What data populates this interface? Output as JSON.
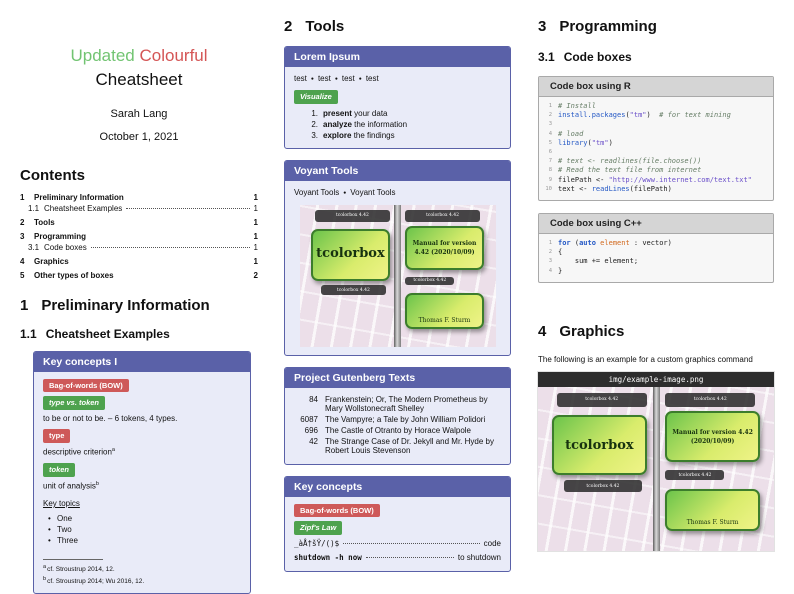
{
  "titleblock": {
    "word_updated": "Updated",
    "word_colourful": "Colourful",
    "word_cheatsheet": "Cheatsheet",
    "author": "Sarah Lang",
    "date": "October 1, 2021"
  },
  "contents": {
    "heading": "Contents",
    "items": [
      {
        "num": "1",
        "label": "Preliminary Information",
        "page": "1"
      },
      {
        "num": "1.1",
        "label": "Cheatsheet Examples",
        "page": "1"
      },
      {
        "num": "2",
        "label": "Tools",
        "page": "1"
      },
      {
        "num": "3",
        "label": "Programming",
        "page": "1"
      },
      {
        "num": "3.1",
        "label": "Code boxes",
        "page": "1"
      },
      {
        "num": "4",
        "label": "Graphics",
        "page": "1"
      },
      {
        "num": "5",
        "label": "Other types of boxes",
        "page": "2"
      }
    ]
  },
  "section_preliminary": {
    "number": "1",
    "title": "Preliminary Information"
  },
  "subsection_examples": {
    "number": "1.1",
    "title": "Cheatsheet Examples"
  },
  "key_concepts_1": {
    "title": "Key concepts I",
    "badge_bow": "Bag-of-words (BOW)",
    "badge_type_vs_token": "type vs. token",
    "type_vs_token_text": "to be or not to be. – 6 tokens, 4 types.",
    "badge_type": "type",
    "type_text": "descriptive criterion",
    "type_footnote_mark": "a",
    "badge_token": "token",
    "token_text": "unit of analysis",
    "token_footnote_mark": "b",
    "key_topics_heading": "Key topics",
    "topics": [
      "One",
      "Two",
      "Three"
    ],
    "footnotes": [
      {
        "mark": "a",
        "text": "cf. Stroustrup 2014, 12."
      },
      {
        "mark": "b",
        "text": "cf. Stroustrup 2014; Wu 2016, 12."
      }
    ]
  },
  "section_tools": {
    "number": "2",
    "title": "Tools"
  },
  "lorem_box": {
    "title": "Lorem Ipsum",
    "separator": "●",
    "test_items": [
      "test",
      "test",
      "test",
      "test"
    ],
    "badge_visualize": "Visualize",
    "steps": [
      {
        "num": "1.",
        "bold": "present",
        "rest": " your data"
      },
      {
        "num": "2.",
        "bold": "analyze",
        "rest": " the information"
      },
      {
        "num": "3.",
        "bold": "explore",
        "rest": " the findings"
      }
    ]
  },
  "voyant_box": {
    "title": "Voyant Tools",
    "separator": "●",
    "link1": "Voyant Tools",
    "link2": "Voyant Tools"
  },
  "gutenberg_box": {
    "title": "Project Gutenberg Texts",
    "rows": [
      {
        "id": "84",
        "text": "Frankenstein; Or, The Modern Prometheus by Mary Wollstonecraft Shelley"
      },
      {
        "id": "6087",
        "text": "The Vampyre; a Tale by John William Polidori"
      },
      {
        "id": "696",
        "text": "The Castle of Otranto by Horace Walpole"
      },
      {
        "id": "42",
        "text": "The Strange Case of Dr. Jekyll and Mr. Hyde by Robert Louis Stevenson"
      }
    ]
  },
  "key_concepts_2": {
    "title": "Key concepts",
    "badge_bow": "Bag-of-words (BOW)",
    "badge_zipf": "Zipf's Law",
    "rows": [
      {
        "left": "_àÅ†šŸ/()$",
        "right": "code"
      },
      {
        "left": "shutdown -h now",
        "right": "to shutdown"
      }
    ]
  },
  "section_programming": {
    "number": "3",
    "title": "Programming"
  },
  "subsection_codeboxes": {
    "number": "3.1",
    "title": "Code boxes"
  },
  "code_r": {
    "title": "Code box using R",
    "lines": [
      {
        "n": "1",
        "segs": [
          {
            "t": "# Install",
            "c": "com"
          }
        ]
      },
      {
        "n": "2",
        "segs": [
          {
            "t": "install.packages",
            "c": "fn"
          },
          {
            "t": "(",
            "c": "pl"
          },
          {
            "t": "\"tm\"",
            "c": "str"
          },
          {
            "t": ")  ",
            "c": "pl"
          },
          {
            "t": "# for text mining",
            "c": "com"
          }
        ]
      },
      {
        "n": "3",
        "segs": []
      },
      {
        "n": "4",
        "segs": [
          {
            "t": "# load",
            "c": "com"
          }
        ]
      },
      {
        "n": "5",
        "segs": [
          {
            "t": "library",
            "c": "fn"
          },
          {
            "t": "(",
            "c": "pl"
          },
          {
            "t": "\"tm\"",
            "c": "str"
          },
          {
            "t": ")",
            "c": "pl"
          }
        ]
      },
      {
        "n": "6",
        "segs": []
      },
      {
        "n": "7",
        "segs": [
          {
            "t": "# text <- readlines(file.choose())",
            "c": "com"
          }
        ]
      },
      {
        "n": "8",
        "segs": [
          {
            "t": "# Read the text file from internet",
            "c": "com"
          }
        ]
      },
      {
        "n": "9",
        "segs": [
          {
            "t": "filePath <- ",
            "c": "pl"
          },
          {
            "t": "\"http://www.internet.com/text.txt\"",
            "c": "str"
          }
        ]
      },
      {
        "n": "10",
        "segs": [
          {
            "t": "text <- ",
            "c": "pl"
          },
          {
            "t": "readLines",
            "c": "fn"
          },
          {
            "t": "(filePath)",
            "c": "pl"
          }
        ]
      }
    ]
  },
  "code_cpp": {
    "title": "Code box using C++",
    "lines": [
      {
        "n": "1",
        "segs": [
          {
            "t": "for",
            "c": "kw"
          },
          {
            "t": " (",
            "c": "pl"
          },
          {
            "t": "auto",
            "c": "kw"
          },
          {
            "t": " ",
            "c": "pl"
          },
          {
            "t": "element",
            "c": "id"
          },
          {
            "t": " : vector)",
            "c": "pl"
          }
        ]
      },
      {
        "n": "2",
        "segs": [
          {
            "t": "{",
            "c": "pl"
          }
        ]
      },
      {
        "n": "3",
        "segs": [
          {
            "t": "    sum += element;",
            "c": "pl"
          }
        ]
      },
      {
        "n": "4",
        "segs": [
          {
            "t": "}",
            "c": "pl"
          }
        ]
      }
    ]
  },
  "section_graphics": {
    "number": "4",
    "title": "Graphics"
  },
  "graphics": {
    "intro": "The following is an example for a custom graphics command",
    "image_label": "img/example-image.png"
  },
  "example_image": {
    "top_badge_left": "tcolorbox 4.42",
    "top_badge_right": "tcolorbox 4.42",
    "main_box": "tcolorbox",
    "manual_box": "Manual for version 4.42 (2020/10/09)",
    "mid_badge_left": "tcolorbox 4.42",
    "mid_badge_right": "tcolorbox 4.42",
    "author_box": "Thomas F. Sturm"
  }
}
